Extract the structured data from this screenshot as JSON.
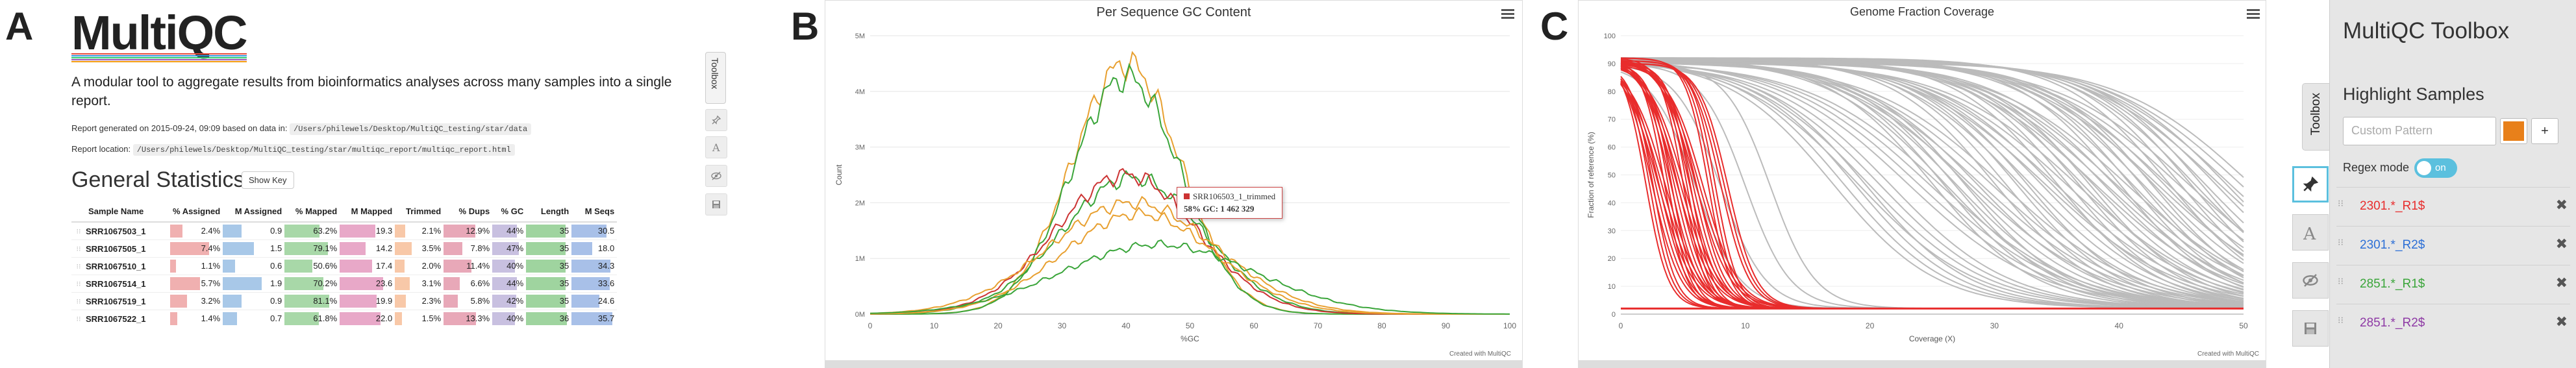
{
  "panel_letters": {
    "a": "A",
    "b": "B",
    "c": "C"
  },
  "panelA": {
    "logo": "MultiQC",
    "logo_line_colors": [
      "#e74c3c",
      "#3498db",
      "#2ecc71",
      "#9b59b6",
      "#f39c12"
    ],
    "intro": "A modular tool to aggregate results from bioinformatics analyses across many samples into a single report.",
    "generated_label": "Report generated on 2015-09-24, 09:09 based on data in:",
    "generated_path": "/Users/philewels/Desktop/MultiQC_testing/star/data",
    "location_label": "Report location:",
    "location_path": "/Users/philewels/Desktop/MultiQC_testing/star/multiqc_report/multiqc_report.html",
    "general_stats_title": "General Statistics",
    "show_key_label": "Show Key",
    "toolbox_strip_label": "Toolbox",
    "columns": [
      "Sample Name",
      "% Assigned",
      "M Assigned",
      "% Mapped",
      "M Mapped",
      "Trimmed",
      "% Dups",
      "% GC",
      "Length",
      "M Seqs"
    ],
    "column_colors": [
      "#f0b0b0",
      "#a8c8e8",
      "#a8d8a8",
      "#e8a8c8",
      "#f8c8a8",
      "#e8a8b8",
      "#c8c0e0",
      "#9fd49f",
      "#a8c0e8"
    ],
    "column_max": [
      10,
      3,
      100,
      30,
      10,
      20,
      60,
      40,
      40
    ],
    "rows": [
      {
        "name": "SRR1067503_1",
        "vals": [
          "2.4%",
          "0.9",
          "63.2%",
          "19.3",
          "2.1%",
          "12.9%",
          "44%",
          "35",
          "30.5"
        ],
        "nums": [
          2.4,
          0.9,
          63.2,
          19.3,
          2.1,
          12.9,
          44,
          35,
          30.5
        ]
      },
      {
        "name": "SRR1067505_1",
        "vals": [
          "7.4%",
          "1.5",
          "79.1%",
          "14.2",
          "3.5%",
          "7.8%",
          "47%",
          "35",
          "18.0"
        ],
        "nums": [
          7.4,
          1.5,
          79.1,
          14.2,
          3.5,
          7.8,
          47,
          35,
          18.0
        ]
      },
      {
        "name": "SRR1067510_1",
        "vals": [
          "1.1%",
          "0.6",
          "50.6%",
          "17.4",
          "2.0%",
          "11.4%",
          "40%",
          "35",
          "34.3"
        ],
        "nums": [
          1.1,
          0.6,
          50.6,
          17.4,
          2.0,
          11.4,
          40,
          35,
          34.3
        ]
      },
      {
        "name": "SRR1067514_1",
        "vals": [
          "5.7%",
          "1.9",
          "70.2%",
          "23.6",
          "3.1%",
          "6.6%",
          "44%",
          "35",
          "33.6"
        ],
        "nums": [
          5.7,
          1.9,
          70.2,
          23.6,
          3.1,
          6.6,
          44,
          35,
          33.6
        ]
      },
      {
        "name": "SRR1067519_1",
        "vals": [
          "3.2%",
          "0.9",
          "81.1%",
          "19.9",
          "2.3%",
          "5.8%",
          "42%",
          "35",
          "24.6"
        ],
        "nums": [
          3.2,
          0.9,
          81.1,
          19.9,
          2.3,
          5.8,
          42,
          35,
          24.6
        ]
      },
      {
        "name": "SRR1067522_1",
        "vals": [
          "1.4%",
          "0.7",
          "61.8%",
          "22.0",
          "1.5%",
          "13.3%",
          "40%",
          "36",
          "35.7"
        ],
        "nums": [
          1.4,
          0.7,
          61.8,
          22.0,
          1.5,
          13.3,
          40,
          36,
          35.7
        ]
      }
    ]
  },
  "panelB": {
    "title": "Per Sequence GC Content",
    "credit": "Created with MultiQC",
    "tooltip_sample": "SRR106503_1_trimmed",
    "tooltip_text": "58% GC: 1 462 329"
  },
  "panelC": {
    "title": "Genome Fraction Coverage",
    "credit": "Created with MultiQC"
  },
  "toolbox": {
    "tab_label": "Toolbox",
    "title": "MultiQC Toolbox",
    "highlight_title": "Highlight Samples",
    "input_placeholder": "Custom Pattern",
    "add_label": "+",
    "highlight_color": "#e8801a",
    "regex_label": "Regex mode",
    "regex_toggle": "on",
    "patterns": [
      {
        "text": "2301.*_R1$",
        "color": "#e82c2c"
      },
      {
        "text": "2301.*_R2$",
        "color": "#2c6fd6"
      },
      {
        "text": "2851.*_R1$",
        "color": "#3aa53a"
      },
      {
        "text": "2851.*_R2$",
        "color": "#8e3aa5"
      }
    ],
    "remove_label": "✖"
  },
  "chart_data": [
    {
      "type": "line",
      "title": "Per Sequence GC Content",
      "xlabel": "%GC",
      "ylabel": "Count",
      "xlim": [
        0,
        100
      ],
      "ylim": [
        0,
        5000000
      ],
      "xticks": [
        0,
        10,
        20,
        30,
        40,
        50,
        60,
        70,
        80,
        90,
        100
      ],
      "yticks": [
        0,
        1000000,
        2000000,
        3000000,
        4000000,
        5000000
      ],
      "ytick_labels": [
        "0M",
        "1M",
        "2M",
        "3M",
        "4M",
        "5M"
      ],
      "series": [
        {
          "color": "#e8a030",
          "peak_x": 40,
          "peak_y": 4500000,
          "sigma": 8.5
        },
        {
          "color": "#3aa53a",
          "peak_x": 40,
          "peak_y": 4250000,
          "sigma": 8.5
        },
        {
          "color": "#3aa53a",
          "peak_x": 41,
          "peak_y": 2450000,
          "sigma": 11
        },
        {
          "color": "#cc3333",
          "peak_x": 40,
          "peak_y": 2500000,
          "sigma": 11
        },
        {
          "color": "#e8a030",
          "peak_x": 41,
          "peak_y": 2000000,
          "sigma": 13
        },
        {
          "color": "#e8a030",
          "peak_x": 42,
          "peak_y": 1800000,
          "sigma": 12
        },
        {
          "color": "#3aa53a",
          "peak_x": 45,
          "peak_y": 1250000,
          "sigma": 15
        }
      ]
    },
    {
      "type": "line",
      "title": "Genome Fraction Coverage",
      "xlabel": "Coverage (X)",
      "ylabel": "Fraction of reference (%)",
      "xlim": [
        0,
        50
      ],
      "ylim": [
        0,
        100
      ],
      "xticks": [
        0,
        10,
        20,
        30,
        40,
        50
      ],
      "yticks": [
        0,
        10,
        20,
        30,
        40,
        50,
        60,
        70,
        80,
        90,
        100
      ],
      "highlight_color": "#e82c2c",
      "grey_color": "#bbbbbb",
      "grey_midpoints": [
        17,
        19,
        23,
        25,
        26,
        28,
        30,
        32,
        34,
        35,
        37,
        38,
        40,
        41,
        43,
        44,
        46,
        48
      ],
      "red_midpoints": [
        2,
        2.5,
        3,
        3.5,
        4,
        4.5,
        5,
        5.5,
        6,
        7,
        8
      ],
      "light_grey_midpoints": [
        6,
        8,
        10,
        12
      ]
    }
  ]
}
